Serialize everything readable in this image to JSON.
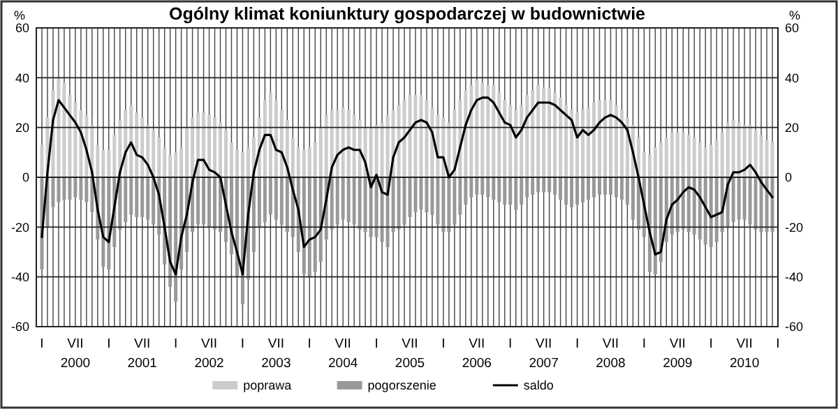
{
  "chart_data": {
    "type": "bar",
    "title": "Ogólny klimat koniunktury gospodarczej w budownictwie",
    "ylabel": "%",
    "y2label": "%",
    "x": [
      "2000-01",
      "2000-02",
      "2000-03",
      "2000-04",
      "2000-05",
      "2000-06",
      "2000-07",
      "2000-08",
      "2000-09",
      "2000-10",
      "2000-11",
      "2000-12",
      "2001-01",
      "2001-02",
      "2001-03",
      "2001-04",
      "2001-05",
      "2001-06",
      "2001-07",
      "2001-08",
      "2001-09",
      "2001-10",
      "2001-11",
      "2001-12",
      "2002-01",
      "2002-02",
      "2002-03",
      "2002-04",
      "2002-05",
      "2002-06",
      "2002-07",
      "2002-08",
      "2002-09",
      "2002-10",
      "2002-11",
      "2002-12",
      "2003-01",
      "2003-02",
      "2003-03",
      "2003-04",
      "2003-05",
      "2003-06",
      "2003-07",
      "2003-08",
      "2003-09",
      "2003-10",
      "2003-11",
      "2003-12",
      "2004-01",
      "2004-02",
      "2004-03",
      "2004-04",
      "2004-05",
      "2004-06",
      "2004-07",
      "2004-08",
      "2004-09",
      "2004-10",
      "2004-11",
      "2004-12",
      "2005-01",
      "2005-02",
      "2005-03",
      "2005-04",
      "2005-05",
      "2005-06",
      "2005-07",
      "2005-08",
      "2005-09",
      "2005-10",
      "2005-11",
      "2005-12",
      "2006-01",
      "2006-02",
      "2006-03",
      "2006-04",
      "2006-05",
      "2006-06",
      "2006-07",
      "2006-08",
      "2006-09",
      "2006-10",
      "2006-11",
      "2006-12",
      "2007-01",
      "2007-02",
      "2007-03",
      "2007-04",
      "2007-05",
      "2007-06",
      "2007-07",
      "2007-08",
      "2007-09",
      "2007-10",
      "2007-11",
      "2007-12",
      "2008-01",
      "2008-02",
      "2008-03",
      "2008-04",
      "2008-05",
      "2008-06",
      "2008-07",
      "2008-08",
      "2008-09",
      "2008-10",
      "2008-11",
      "2008-12",
      "2009-01",
      "2009-02",
      "2009-03",
      "2009-04",
      "2009-05",
      "2009-06",
      "2009-07",
      "2009-08",
      "2009-09",
      "2009-10",
      "2009-11",
      "2009-12",
      "2010-01",
      "2010-02",
      "2010-03",
      "2010-04",
      "2010-05",
      "2010-06",
      "2010-07",
      "2010-08",
      "2010-09",
      "2010-10",
      "2010-11",
      "2010-12"
    ],
    "stacked": true,
    "series": [
      {
        "name": "poprawa",
        "color": "#cccccc",
        "values": [
          13,
          24,
          35,
          40,
          38,
          33,
          30,
          27,
          25,
          21,
          13,
          11,
          11,
          17,
          23,
          27,
          29,
          26,
          24,
          21,
          19,
          16,
          12,
          9,
          10,
          12,
          20,
          24,
          26,
          26,
          25,
          24,
          22,
          19,
          14,
          11,
          10,
          12,
          16,
          24,
          31,
          34,
          31,
          27,
          23,
          16,
          12,
          11,
          12,
          14,
          20,
          25,
          27,
          27,
          28,
          27,
          25,
          23,
          20,
          20,
          21,
          22,
          25,
          27,
          29,
          31,
          33,
          33,
          33,
          31,
          28,
          25,
          24,
          22,
          27,
          31,
          35,
          37,
          39,
          38,
          37,
          37,
          34,
          31,
          29,
          27,
          29,
          33,
          35,
          37,
          36,
          36,
          34,
          32,
          29,
          27,
          26,
          27,
          28,
          30,
          31,
          31,
          31,
          29,
          27,
          24,
          21,
          16,
          10,
          9,
          12,
          14,
          16,
          18,
          18,
          18,
          17,
          16,
          14,
          12,
          13,
          15,
          18,
          22,
          23,
          22,
          21,
          21,
          19,
          17,
          15,
          14
        ]
      },
      {
        "name": "pogorszenie",
        "color": "#999999",
        "values": [
          -37,
          -20,
          -12,
          -10,
          -9,
          -9,
          -8,
          -9,
          -10,
          -14,
          -25,
          -36,
          -37,
          -28,
          -21,
          -18,
          -15,
          -16,
          -16,
          -17,
          -19,
          -23,
          -35,
          -44,
          -50,
          -37,
          -30,
          -22,
          -19,
          -19,
          -20,
          -21,
          -22,
          -26,
          -31,
          -40,
          -51,
          -41,
          -30,
          -20,
          -18,
          -15,
          -17,
          -19,
          -22,
          -24,
          -30,
          -39,
          -40,
          -38,
          -34,
          -25,
          -21,
          -19,
          -17,
          -18,
          -19,
          -21,
          -22,
          -24,
          -24,
          -26,
          -28,
          -22,
          -21,
          -19,
          -16,
          -14,
          -13,
          -14,
          -15,
          -19,
          -22,
          -22,
          -19,
          -15,
          -11,
          -8,
          -7,
          -7,
          -8,
          -9,
          -10,
          -11,
          -11,
          -13,
          -11,
          -8,
          -7,
          -6,
          -6,
          -6,
          -7,
          -9,
          -11,
          -12,
          -11,
          -10,
          -9,
          -8,
          -7,
          -7,
          -7,
          -8,
          -9,
          -11,
          -17,
          -21,
          -24,
          -38,
          -39,
          -34,
          -26,
          -23,
          -22,
          -21,
          -22,
          -23,
          -25,
          -27,
          -28,
          -26,
          -22,
          -20,
          -18,
          -17,
          -17,
          -19,
          -21,
          -22,
          -22,
          -22
        ]
      },
      {
        "name": "saldo",
        "type": "line",
        "color": "#000000",
        "values": [
          -24,
          2,
          23,
          31,
          28,
          25,
          22,
          18,
          11,
          2,
          -13,
          -24,
          -26,
          -12,
          2,
          10,
          14,
          9,
          8,
          5,
          0,
          -7,
          -20,
          -34,
          -39,
          -24,
          -15,
          -2,
          7,
          7,
          3,
          2,
          0,
          -11,
          -22,
          -30,
          -39,
          -15,
          2,
          11,
          17,
          17,
          11,
          10,
          4,
          -5,
          -13,
          -28,
          -25,
          -24,
          -21,
          -9,
          4,
          9,
          11,
          12,
          11,
          11,
          6,
          -4,
          1,
          -6,
          -7,
          8,
          14,
          16,
          19,
          22,
          23,
          22,
          18,
          8,
          8,
          0,
          3,
          12,
          21,
          27,
          31,
          32,
          32,
          30,
          26,
          22,
          21,
          16,
          19,
          24,
          27,
          30,
          30,
          30,
          29,
          27,
          25,
          23,
          16,
          19,
          17,
          19,
          22,
          24,
          25,
          24,
          22,
          19,
          10,
          0,
          -11,
          -22,
          -31,
          -30,
          -17,
          -11,
          -9,
          -6,
          -4,
          -5,
          -8,
          -12,
          -16,
          -15,
          -14,
          -3,
          2,
          2,
          3,
          5,
          2,
          -2,
          -5,
          -8
        ]
      }
    ],
    "xlim": [
      "1999-12",
      "2011-01"
    ],
    "xticks": [
      {
        "value": "2000-01",
        "label": "I"
      },
      {
        "value": "2000-02",
        "label": null
      },
      {
        "value": "2000-03",
        "label": null
      },
      {
        "value": "2000-04",
        "label": null
      },
      {
        "value": "2000-05",
        "label": null
      },
      {
        "value": "2000-06",
        "label": null
      },
      {
        "value": "2000-07",
        "label": "VII\n2000"
      },
      {
        "value": "2000-08",
        "label": null
      },
      {
        "value": "2000-09",
        "label": null
      },
      {
        "value": "2000-10",
        "label": null
      },
      {
        "value": "2000-11",
        "label": null
      },
      {
        "value": "2000-12",
        "label": null
      },
      {
        "value": "2001-01",
        "label": "I"
      },
      {
        "value": "2001-02",
        "label": null
      },
      {
        "value": "2001-03",
        "label": null
      },
      {
        "value": "2001-04",
        "label": null
      },
      {
        "value": "2001-05",
        "label": null
      },
      {
        "value": "2001-06",
        "label": null
      },
      {
        "value": "2001-07",
        "label": "VII\n2001"
      },
      {
        "value": "2001-08",
        "label": null
      },
      {
        "value": "2001-09",
        "label": null
      },
      {
        "value": "2001-10",
        "label": null
      },
      {
        "value": "2001-11",
        "label": null
      },
      {
        "value": "2001-12",
        "label": null
      },
      {
        "value": "2002-01",
        "label": "I"
      },
      {
        "value": "2002-02",
        "label": null
      },
      {
        "value": "2002-03",
        "label": null
      },
      {
        "value": "2002-04",
        "label": null
      },
      {
        "value": "2002-05",
        "label": null
      },
      {
        "value": "2002-06",
        "label": null
      },
      {
        "value": "2002-07",
        "label": "VII\n2002"
      },
      {
        "value": "2002-08",
        "label": null
      },
      {
        "value": "2002-09",
        "label": null
      },
      {
        "value": "2002-10",
        "label": null
      },
      {
        "value": "2002-11",
        "label": null
      },
      {
        "value": "2002-12",
        "label": null
      },
      {
        "value": "2003-01",
        "label": "I"
      },
      {
        "value": "2003-02",
        "label": null
      },
      {
        "value": "2003-03",
        "label": null
      },
      {
        "value": "2003-04",
        "label": null
      },
      {
        "value": "2003-05",
        "label": null
      },
      {
        "value": "2003-06",
        "label": null
      },
      {
        "value": "2003-07",
        "label": "VII\n2003"
      },
      {
        "value": "2003-08",
        "label": null
      },
      {
        "value": "2003-09",
        "label": null
      },
      {
        "value": "2003-10",
        "label": null
      },
      {
        "value": "2003-11",
        "label": null
      },
      {
        "value": "2003-12",
        "label": null
      },
      {
        "value": "2004-01",
        "label": "I"
      },
      {
        "value": "2004-02",
        "label": null
      },
      {
        "value": "2004-03",
        "label": null
      },
      {
        "value": "2004-04",
        "label": null
      },
      {
        "value": "2004-05",
        "label": null
      },
      {
        "value": "2004-06",
        "label": null
      },
      {
        "value": "2004-07",
        "label": "VII\n2004"
      },
      {
        "value": "2004-08",
        "label": null
      },
      {
        "value": "2004-09",
        "label": null
      },
      {
        "value": "2004-10",
        "label": null
      },
      {
        "value": "2004-11",
        "label": null
      },
      {
        "value": "2004-12",
        "label": null
      },
      {
        "value": "2005-01",
        "label": "I"
      },
      {
        "value": "2005-02",
        "label": null
      },
      {
        "value": "2005-03",
        "label": null
      },
      {
        "value": "2005-04",
        "label": null
      },
      {
        "value": "2005-05",
        "label": null
      },
      {
        "value": "2005-06",
        "label": null
      },
      {
        "value": "2005-07",
        "label": "VII\n2005"
      },
      {
        "value": "2005-08",
        "label": null
      },
      {
        "value": "2005-09",
        "label": null
      },
      {
        "value": "2005-10",
        "label": null
      },
      {
        "value": "2005-11",
        "label": null
      },
      {
        "value": "2005-12",
        "label": null
      },
      {
        "value": "2006-01",
        "label": "I"
      },
      {
        "value": "2006-02",
        "label": null
      },
      {
        "value": "2006-03",
        "label": null
      },
      {
        "value": "2006-04",
        "label": null
      },
      {
        "value": "2006-05",
        "label": null
      },
      {
        "value": "2006-06",
        "label": null
      },
      {
        "value": "2006-07",
        "label": "VII\n2006"
      },
      {
        "value": "2006-08",
        "label": null
      },
      {
        "value": "2006-09",
        "label": null
      },
      {
        "value": "2006-10",
        "label": null
      },
      {
        "value": "2006-11",
        "label": null
      },
      {
        "value": "2006-12",
        "label": null
      },
      {
        "value": "2007-01",
        "label": "I"
      },
      {
        "value": "2007-02",
        "label": null
      },
      {
        "value": "2007-03",
        "label": null
      },
      {
        "value": "2007-04",
        "label": null
      },
      {
        "value": "2007-05",
        "label": null
      },
      {
        "value": "2007-06",
        "label": null
      },
      {
        "value": "2007-07",
        "label": "VII\n2007"
      },
      {
        "value": "2007-08",
        "label": null
      },
      {
        "value": "2007-09",
        "label": null
      },
      {
        "value": "2007-10",
        "label": null
      },
      {
        "value": "2007-11",
        "label": null
      },
      {
        "value": "2007-12",
        "label": null
      },
      {
        "value": "2008-01",
        "label": "I"
      },
      {
        "value": "2008-02",
        "label": null
      },
      {
        "value": "2008-03",
        "label": null
      },
      {
        "value": "2008-04",
        "label": null
      },
      {
        "value": "2008-05",
        "label": null
      },
      {
        "value": "2008-06",
        "label": null
      },
      {
        "value": "2008-07",
        "label": "VII\n2008"
      },
      {
        "value": "2008-08",
        "label": null
      },
      {
        "value": "2008-09",
        "label": null
      },
      {
        "value": "2008-10",
        "label": null
      },
      {
        "value": "2008-11",
        "label": null
      },
      {
        "value": "2008-12",
        "label": null
      },
      {
        "value": "2009-01",
        "label": "I"
      },
      {
        "value": "2009-02",
        "label": null
      },
      {
        "value": "2009-03",
        "label": null
      },
      {
        "value": "2009-04",
        "label": null
      },
      {
        "value": "2009-05",
        "label": null
      },
      {
        "value": "2009-06",
        "label": null
      },
      {
        "value": "2009-07",
        "label": "VII\n2009"
      },
      {
        "value": "2009-08",
        "label": null
      },
      {
        "value": "2009-09",
        "label": null
      },
      {
        "value": "2009-10",
        "label": null
      },
      {
        "value": "2009-11",
        "label": null
      },
      {
        "value": "2009-12",
        "label": null
      },
      {
        "value": "2010-01",
        "label": "I"
      },
      {
        "value": "2010-02",
        "label": null
      },
      {
        "value": "2010-03",
        "label": null
      },
      {
        "value": "2010-04",
        "label": null
      },
      {
        "value": "2010-05",
        "label": null
      },
      {
        "value": "2010-06",
        "label": null
      },
      {
        "value": "2010-07",
        "label": "VII\n2010"
      },
      {
        "value": "2010-08",
        "label": null
      },
      {
        "value": "2010-09",
        "label": null
      },
      {
        "value": "2010-10",
        "label": null
      },
      {
        "value": "2010-11",
        "label": null
      },
      {
        "value": "2010-12",
        "label": null
      },
      {
        "value": "2011-01",
        "label": "I"
      }
    ],
    "ylim": [
      -60,
      60
    ],
    "yticks": [
      -60,
      -40,
      -20,
      0,
      20,
      40,
      60
    ],
    "y2lim": [
      -60,
      60
    ],
    "y2ticks": [
      -60,
      -40,
      -20,
      0,
      20,
      40,
      60
    ],
    "grid": true,
    "legend": "bottom"
  }
}
